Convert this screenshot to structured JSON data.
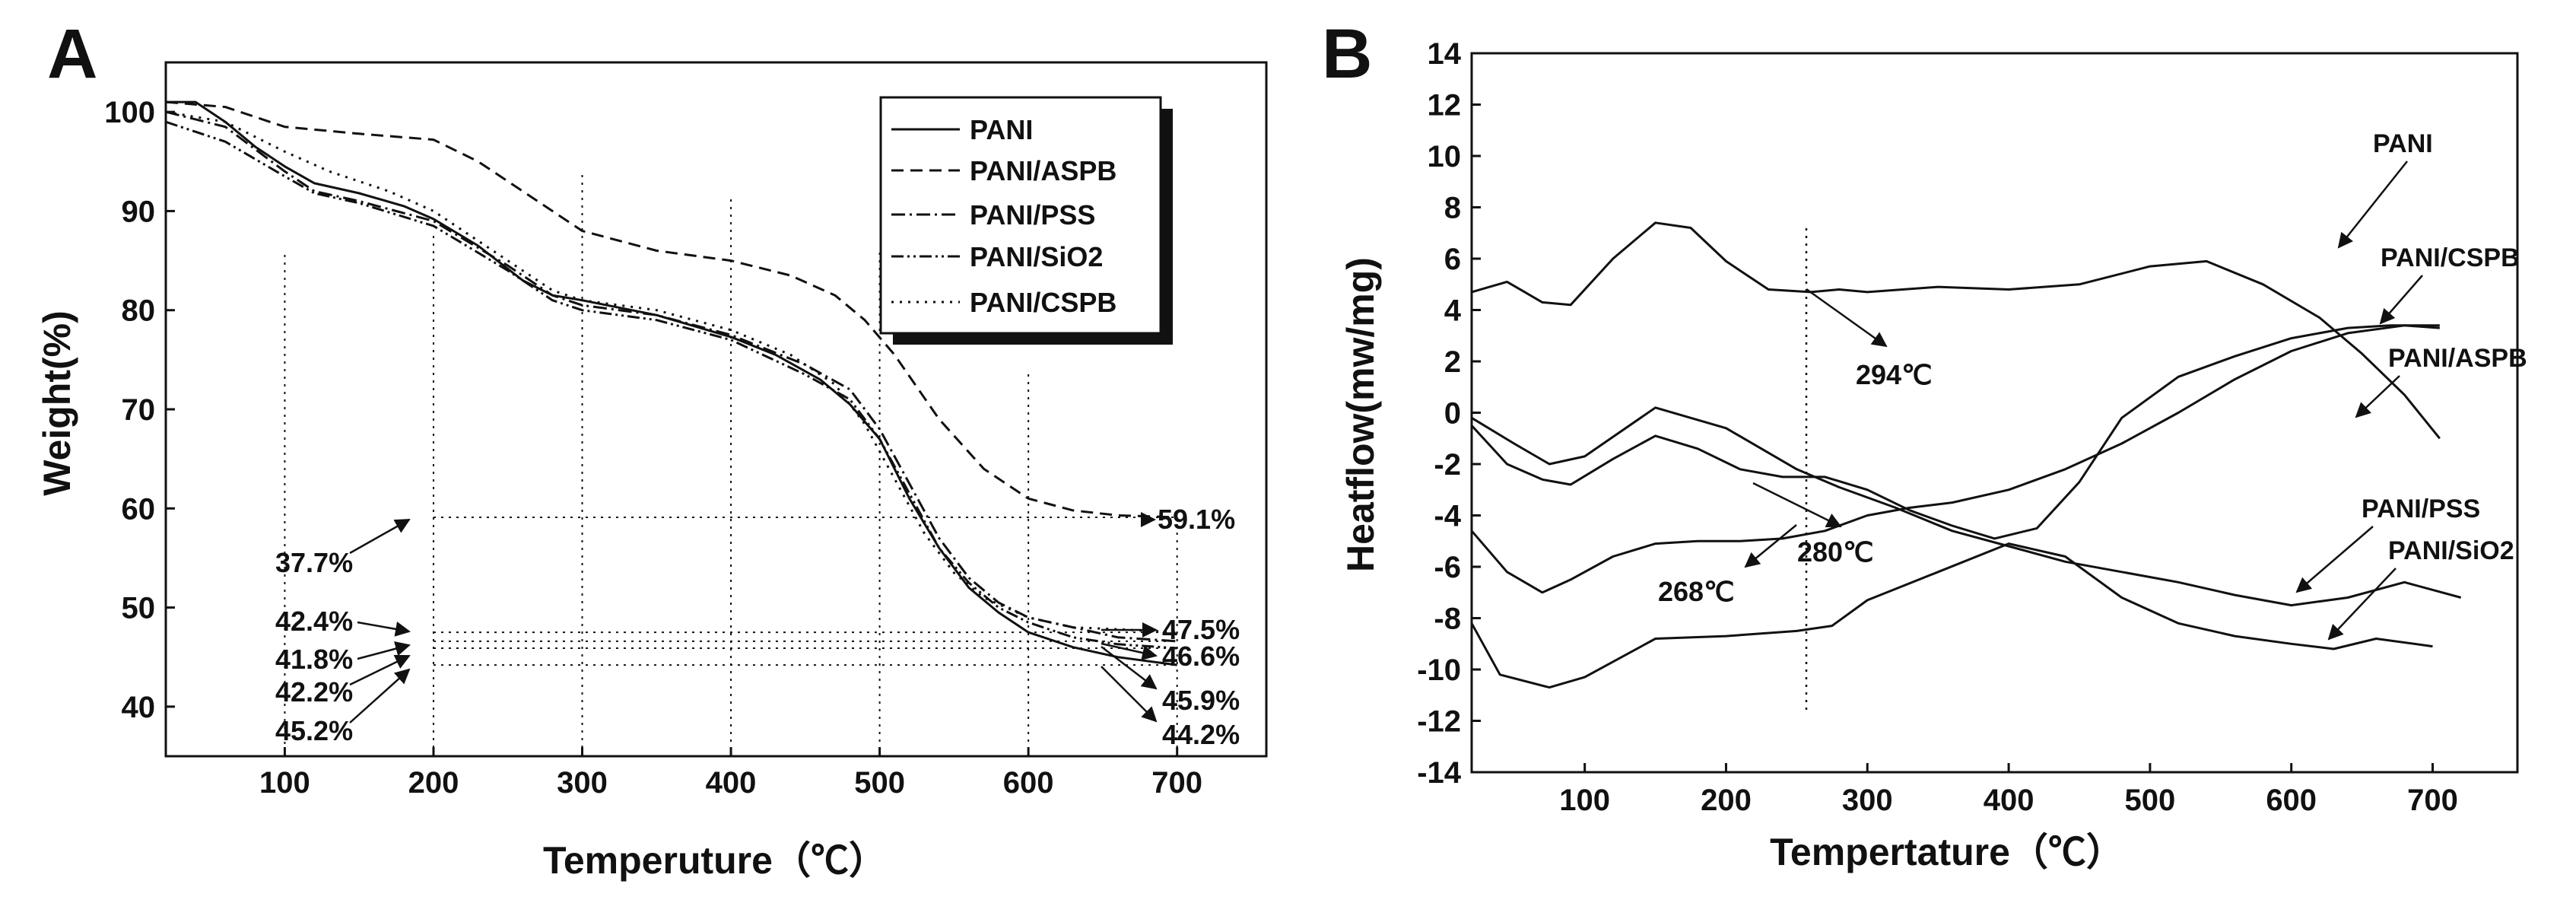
{
  "chart_data": [
    {
      "panel": "A",
      "type": "line",
      "xlabel": "Temperuture（℃）",
      "ylabel": "Weight(%)",
      "xlim": [
        20,
        760
      ],
      "ylim": [
        35,
        105
      ],
      "xticks": [
        100,
        200,
        300,
        400,
        500,
        600,
        700
      ],
      "yticks": [
        40,
        50,
        60,
        70,
        80,
        90,
        100
      ],
      "legend": {
        "position": "top-right",
        "entries": [
          "PANI",
          "PANI/ASPB",
          "PANI/PSS",
          "PANI/SiO2",
          "PANI/CSPB"
        ]
      },
      "series": [
        {
          "name": "PANI",
          "style": "solid",
          "x": [
            20,
            40,
            60,
            80,
            100,
            120,
            150,
            180,
            200,
            230,
            260,
            280,
            300,
            350,
            400,
            430,
            460,
            480,
            500,
            520,
            540,
            560,
            580,
            600,
            630,
            660,
            700
          ],
          "y": [
            101,
            101,
            99,
            96.5,
            94.5,
            92.8,
            91.8,
            90.5,
            89.2,
            86.5,
            83,
            81.5,
            81,
            79.5,
            77.3,
            75.5,
            73,
            70.5,
            67,
            61,
            56,
            52,
            49.5,
            47.5,
            46,
            45,
            44.2
          ]
        },
        {
          "name": "PANI/ASPB",
          "style": "dashed",
          "x": [
            20,
            60,
            100,
            150,
            200,
            230,
            260,
            300,
            350,
            400,
            440,
            470,
            490,
            510,
            540,
            570,
            600,
            630,
            660,
            700
          ],
          "y": [
            101,
            100.5,
            98.5,
            97.8,
            97.2,
            95,
            92,
            88,
            86,
            85,
            83.5,
            81.5,
            79,
            75.5,
            69,
            64,
            61,
            59.8,
            59.3,
            59.1
          ]
        },
        {
          "name": "PANI/PSS",
          "style": "dashdot",
          "x": [
            20,
            60,
            100,
            120,
            150,
            200,
            250,
            280,
            300,
            350,
            400,
            450,
            480,
            500,
            520,
            540,
            560,
            580,
            600,
            630,
            660,
            700
          ],
          "y": [
            100,
            98.5,
            94,
            92,
            91,
            89,
            84.5,
            81.5,
            80.5,
            79.5,
            77.5,
            74.5,
            72,
            68,
            62.5,
            57,
            53,
            50.5,
            49,
            48,
            47,
            46.6
          ]
        },
        {
          "name": "PANI/SiO2",
          "style": "dashdotdot",
          "x": [
            20,
            40,
            60,
            100,
            120,
            150,
            200,
            250,
            280,
            300,
            350,
            400,
            450,
            480,
            500,
            520,
            540,
            560,
            580,
            600,
            630,
            660,
            700
          ],
          "y": [
            99,
            98,
            97,
            93.5,
            91.8,
            90.8,
            88.5,
            84,
            81,
            80,
            79,
            77,
            73.5,
            71,
            67,
            61.5,
            56,
            52.5,
            50,
            48.5,
            47,
            46.3,
            45.9
          ]
        },
        {
          "name": "PANI/CSPB",
          "style": "dotted",
          "x": [
            20,
            60,
            100,
            130,
            170,
            200,
            250,
            280,
            300,
            350,
            400,
            440,
            470,
            490,
            510,
            530,
            550,
            570,
            600,
            630,
            660,
            700
          ],
          "y": [
            100,
            99,
            96,
            94,
            92,
            90,
            85,
            82,
            81,
            80,
            78,
            75.5,
            72.5,
            68.5,
            63,
            57.5,
            53.5,
            51,
            49,
            48,
            47.8,
            47.5
          ]
        }
      ],
      "annotations": {
        "left_values": [
          "37.7%",
          "42.4%",
          "41.8%",
          "42.2%",
          "45.2%"
        ],
        "right_values": [
          "59.1%",
          "47.5%",
          "46.6%",
          "45.9%",
          "44.2%"
        ]
      }
    },
    {
      "panel": "B",
      "type": "line",
      "xlabel": "Tempertature（℃）",
      "ylabel": "Heatflow(mw/mg)",
      "xlim": [
        20,
        760
      ],
      "ylim": [
        -14,
        14
      ],
      "xticks": [
        100,
        200,
        300,
        400,
        500,
        600,
        700
      ],
      "yticks": [
        -14,
        -12,
        -10,
        -8,
        -6,
        -4,
        -2,
        0,
        2,
        4,
        6,
        8,
        10,
        12,
        14
      ],
      "series": [
        {
          "name": "PANI",
          "x": [
            20,
            45,
            70,
            90,
            120,
            150,
            175,
            200,
            230,
            260,
            280,
            300,
            350,
            400,
            450,
            500,
            540,
            580,
            620,
            650,
            680,
            705
          ],
          "y": [
            4.7,
            5.1,
            4.3,
            4.2,
            6.0,
            7.4,
            7.2,
            5.9,
            4.8,
            4.7,
            4.8,
            4.7,
            4.9,
            4.8,
            5.0,
            5.7,
            5.9,
            5.0,
            3.7,
            2.3,
            0.7,
            -1.0
          ]
        },
        {
          "name": "PANI/CSPB",
          "x": [
            20,
            45,
            70,
            90,
            120,
            150,
            180,
            210,
            240,
            270,
            300,
            330,
            360,
            390,
            420,
            450,
            480,
            520,
            560,
            600,
            640,
            670,
            705
          ],
          "y": [
            -0.5,
            -2.0,
            -2.6,
            -2.8,
            -1.8,
            -0.9,
            -1.4,
            -2.2,
            -2.5,
            -2.5,
            -3.0,
            -3.8,
            -4.4,
            -4.9,
            -4.5,
            -2.7,
            -0.2,
            1.4,
            2.2,
            2.9,
            3.3,
            3.4,
            3.4
          ]
        },
        {
          "name": "PANI/ASPB",
          "x": [
            20,
            45,
            70,
            90,
            120,
            150,
            180,
            210,
            240,
            270,
            300,
            330,
            360,
            400,
            440,
            480,
            520,
            560,
            600,
            640,
            680,
            705
          ],
          "y": [
            -4.6,
            -6.2,
            -7.0,
            -6.5,
            -5.6,
            -5.1,
            -5.0,
            -5.0,
            -4.9,
            -4.6,
            -4.0,
            -3.7,
            -3.5,
            -3.0,
            -2.2,
            -1.2,
            0.0,
            1.3,
            2.4,
            3.1,
            3.4,
            3.3
          ]
        },
        {
          "name": "PANI/PSS",
          "x": [
            20,
            50,
            75,
            100,
            150,
            200,
            250,
            280,
            320,
            360,
            400,
            440,
            480,
            520,
            560,
            600,
            640,
            680,
            720
          ],
          "y": [
            -0.2,
            -1.2,
            -2.0,
            -1.7,
            0.2,
            -0.6,
            -2.2,
            -2.9,
            -3.7,
            -4.6,
            -5.2,
            -5.8,
            -6.2,
            -6.6,
            -7.1,
            -7.5,
            -7.2,
            -6.6,
            -7.2
          ]
        },
        {
          "name": "PANI/SiO2",
          "x": [
            20,
            40,
            75,
            100,
            150,
            200,
            250,
            275,
            300,
            350,
            400,
            440,
            480,
            520,
            560,
            600,
            630,
            660,
            700
          ],
          "y": [
            -8.2,
            -10.2,
            -10.7,
            -10.3,
            -8.8,
            -8.7,
            -8.5,
            -8.3,
            -7.3,
            -6.2,
            -5.1,
            -5.6,
            -7.2,
            -8.2,
            -8.7,
            -9.0,
            -9.2,
            -8.8,
            -9.1
          ]
        }
      ],
      "curve_labels": [
        "PANI",
        "PANI/CSPB",
        "PANI/ASPB",
        "PANI/PSS",
        "PANI/SiO2"
      ],
      "annotations": [
        "294℃",
        "280℃",
        "268℃"
      ]
    }
  ]
}
